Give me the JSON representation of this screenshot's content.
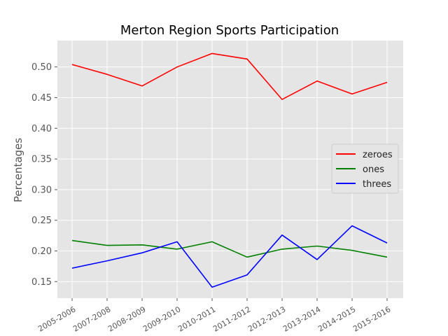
{
  "chart_data": {
    "type": "line",
    "title": "Merton Region Sports Participation",
    "xlabel": "",
    "ylabel": "Percentages",
    "categories": [
      "2005-2006",
      "2007-2008",
      "2008-2009",
      "2009-2010",
      "2010-2011",
      "2011-2012",
      "2012-2013",
      "2013-2014",
      "2014-2015",
      "2015-2016"
    ],
    "ylim": [
      0.123,
      0.543
    ],
    "yticks": [
      0.15,
      0.2,
      0.25,
      0.3,
      0.35,
      0.4,
      0.45,
      0.5
    ],
    "ytick_labels": [
      "0.15",
      "0.20",
      "0.25",
      "0.30",
      "0.35",
      "0.40",
      "0.45",
      "0.50"
    ],
    "grid": true,
    "legend_position": "center-right",
    "series": [
      {
        "name": "zeroes",
        "color": "#ff0000",
        "values": [
          0.504,
          0.488,
          0.469,
          0.5,
          0.522,
          0.513,
          0.447,
          0.477,
          0.456,
          0.475
        ]
      },
      {
        "name": "ones",
        "color": "#008000",
        "values": [
          0.217,
          0.209,
          0.21,
          0.203,
          0.215,
          0.19,
          0.203,
          0.208,
          0.201,
          0.19
        ]
      },
      {
        "name": "threes",
        "color": "#0000ff",
        "values": [
          0.172,
          0.184,
          0.197,
          0.215,
          0.141,
          0.161,
          0.226,
          0.186,
          0.241,
          0.213
        ]
      }
    ]
  }
}
